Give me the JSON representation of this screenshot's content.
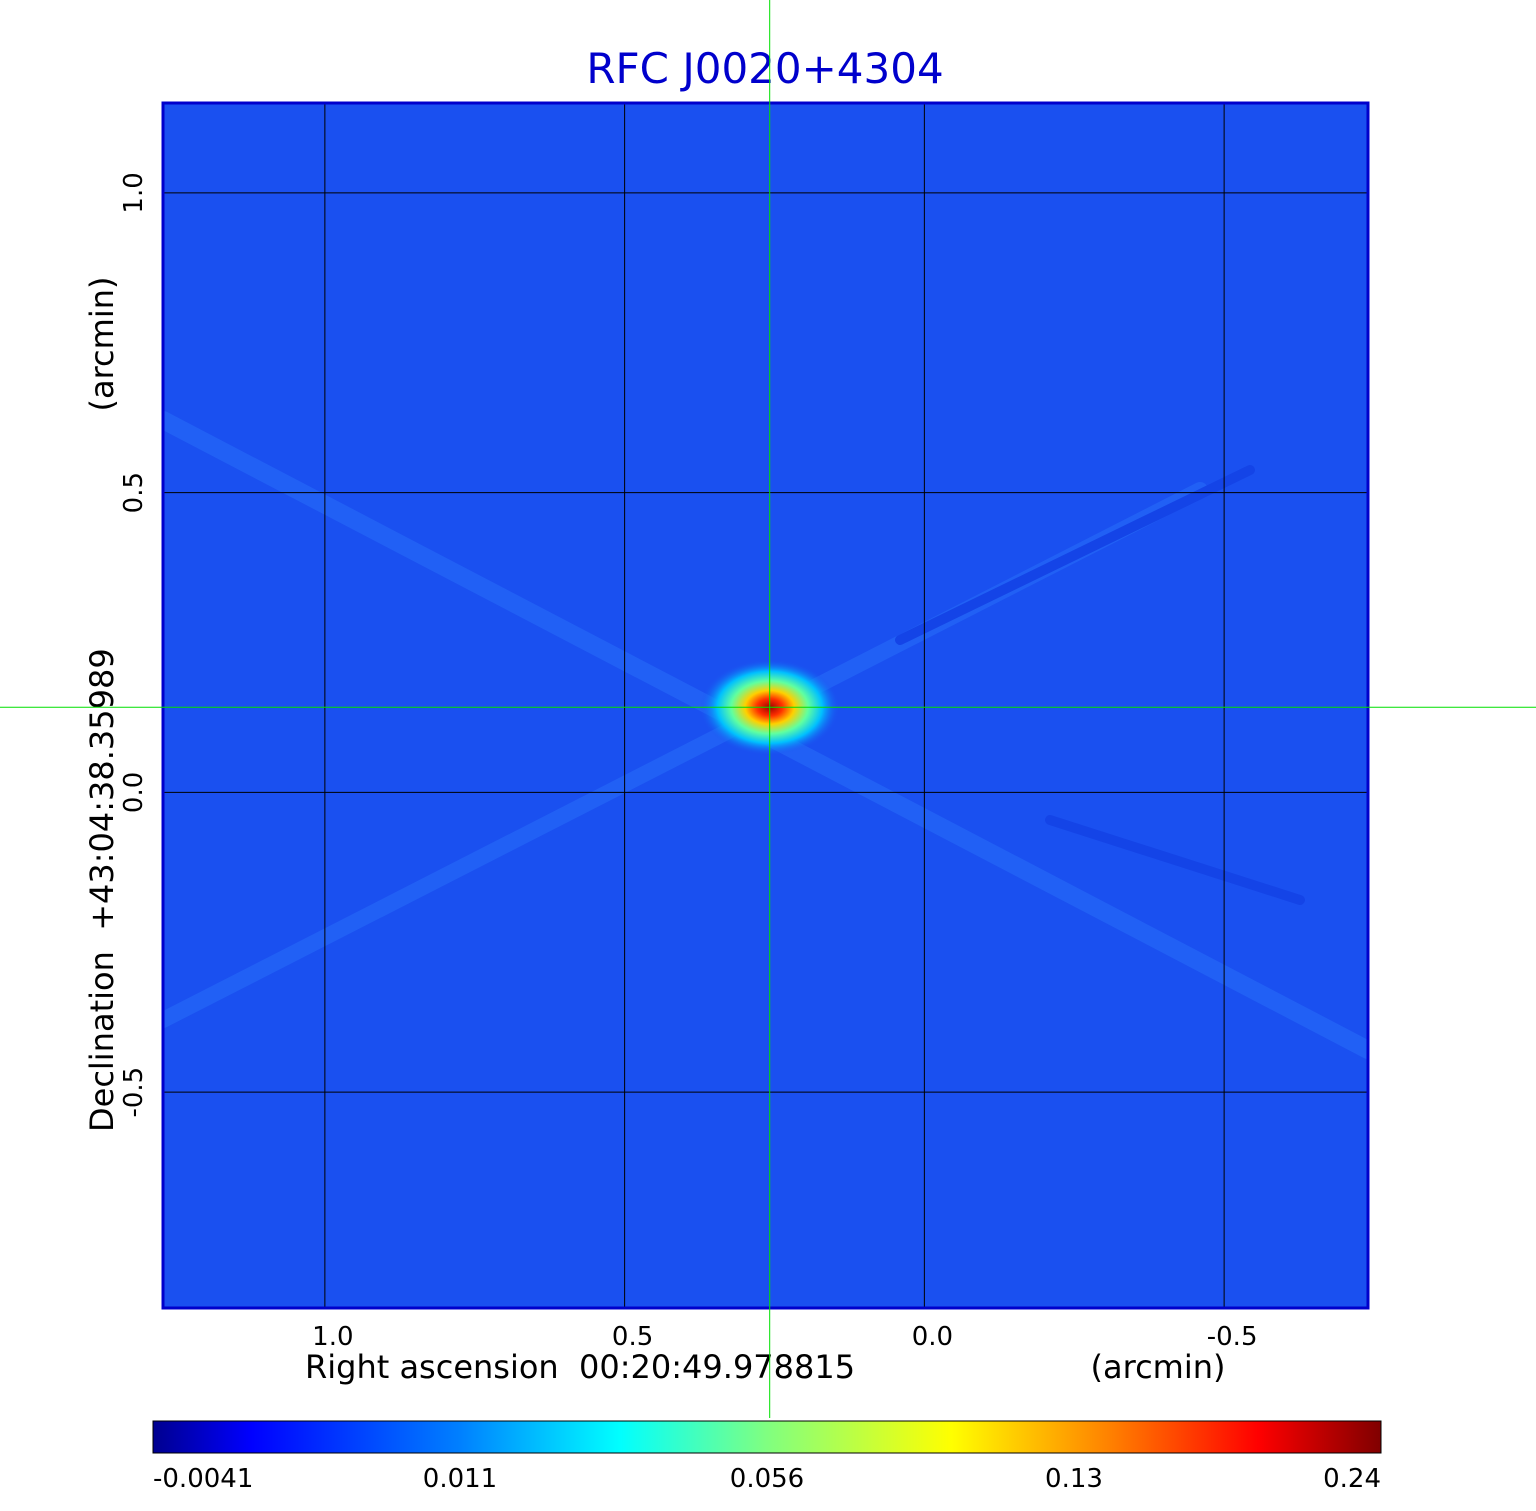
{
  "chart_data": {
    "type": "heatmap",
    "title": "RFC J0020+4304",
    "xlabel": "Right ascension  00:20:49.978815",
    "xunit": "(arcmin)",
    "ylabel": "Declination  +43:04:38.35989",
    "yunit": "(arcmin)",
    "xlim": [
      1.27,
      -0.74
    ],
    "ylim": [
      -0.86,
      1.15
    ],
    "xticks": [
      1.0,
      0.5,
      0.0,
      -0.5
    ],
    "xtick_labels": [
      "1.0",
      "0.5",
      "0.0",
      "-0.5"
    ],
    "yticks": [
      1.0,
      0.5,
      0.0,
      -0.5
    ],
    "ytick_labels": [
      "1.0",
      "0.5",
      "0.0",
      "-0.5"
    ],
    "grid": true,
    "crosshair": {
      "x": 0.258,
      "y": 0.142,
      "color": "#00e000"
    },
    "source": {
      "x": 0.258,
      "y": 0.142,
      "peak": 0.24
    },
    "colorbar": {
      "orientation": "horizontal",
      "tick_labels": [
        "-0.0041",
        "0.011",
        "0.056",
        "0.13",
        "0.24"
      ],
      "colormap": [
        "#00008f",
        "#0000ff",
        "#0080ff",
        "#00ffff",
        "#80ff80",
        "#ffff00",
        "#ff8000",
        "#ff0000",
        "#800000"
      ]
    },
    "colors": {
      "title": "#0000cc",
      "frame": "#0000cc",
      "background": "#1a50f0",
      "grid": "#000000"
    }
  }
}
